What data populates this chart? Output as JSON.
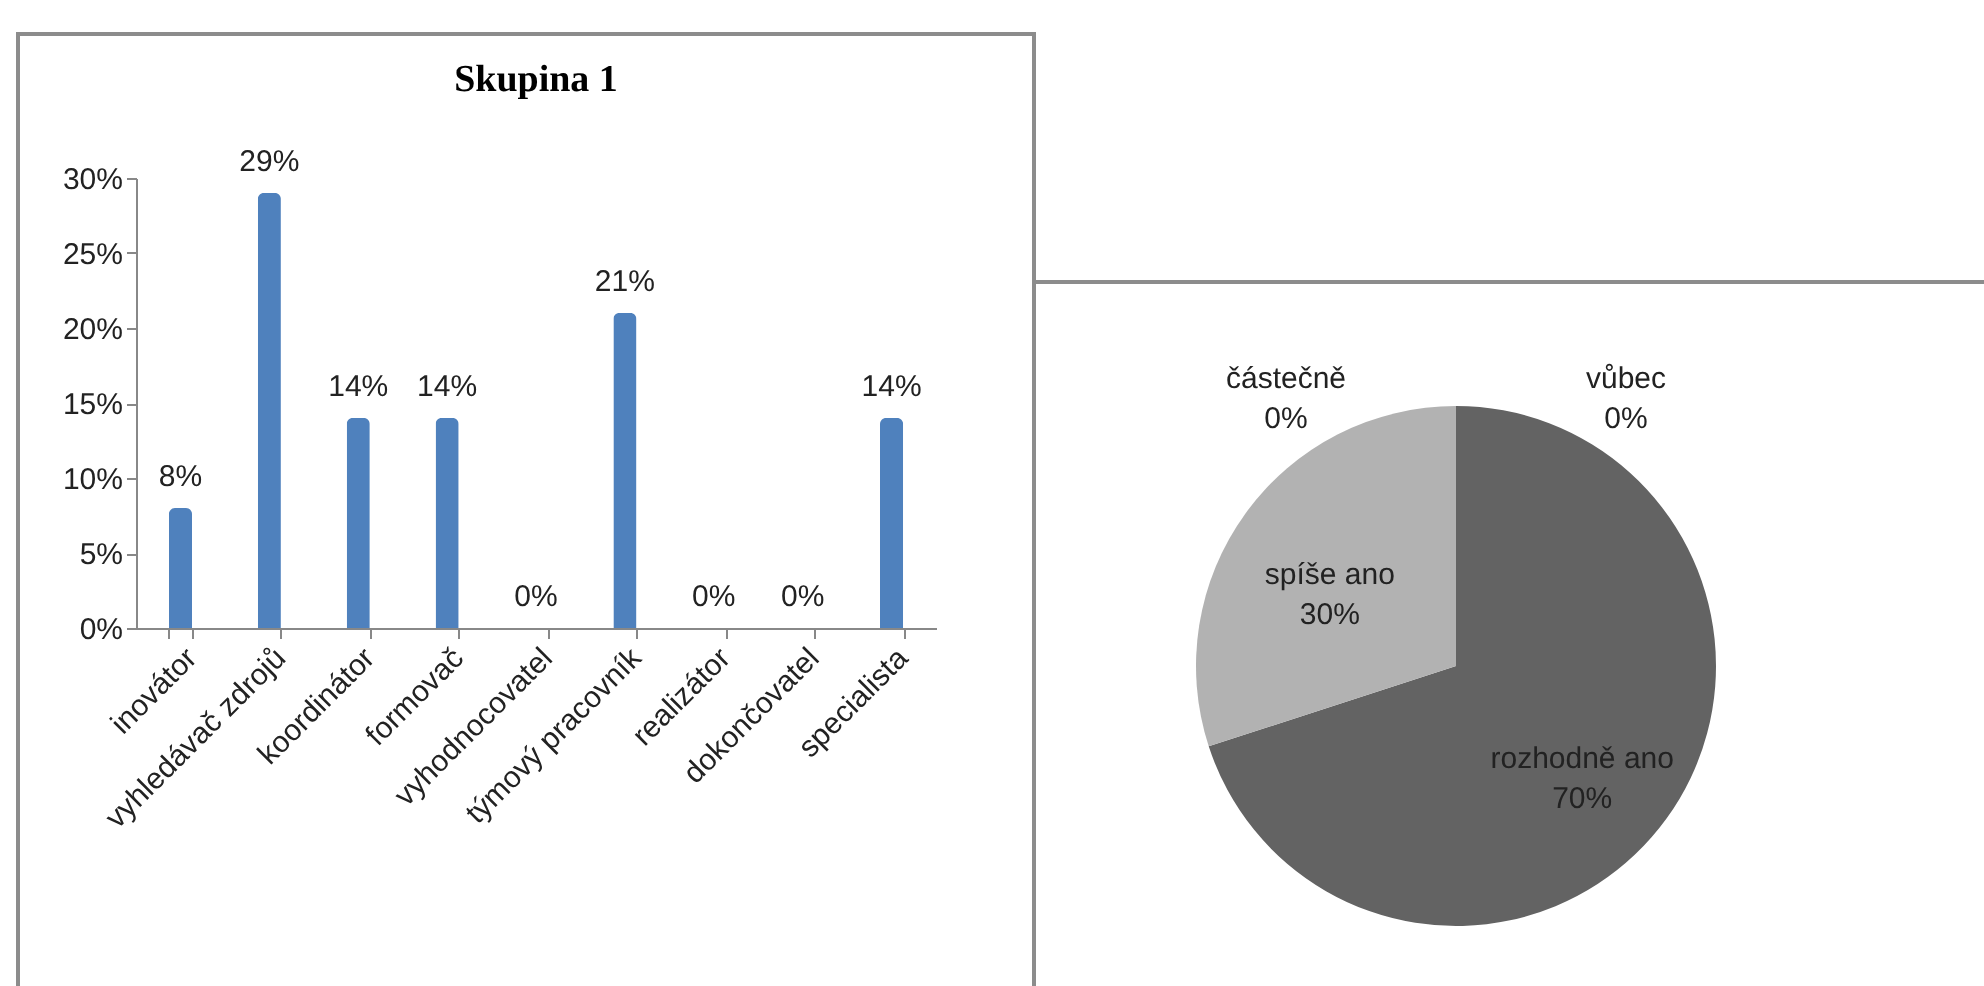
{
  "chart_data": [
    {
      "type": "bar",
      "title": "Skupina 1",
      "categories": [
        "inovátor",
        "vyhledávač zdrojů",
        "koordinátor",
        "formovač",
        "vyhodnocovatel",
        "týmový pracovník",
        "realizátor",
        "dokončovatel",
        "specialista"
      ],
      "values": [
        8,
        29,
        14,
        14,
        0,
        21,
        0,
        0,
        14
      ],
      "color": "#4f81bd",
      "value_labels": [
        "8%",
        "29%",
        "14%",
        "14%",
        "0%",
        "21%",
        "0%",
        "0%",
        "14%"
      ],
      "ylim": [
        0,
        30
      ],
      "yticks": [
        {
          "value": 0,
          "label": "0%"
        },
        {
          "value": 5,
          "label": "5%"
        },
        {
          "value": 10,
          "label": "10%"
        },
        {
          "value": 15,
          "label": "15%"
        },
        {
          "value": 20,
          "label": "20%"
        },
        {
          "value": 25,
          "label": "25%"
        },
        {
          "value": 30,
          "label": "30%"
        }
      ],
      "grid": false
    },
    {
      "type": "pie",
      "categories": [
        "rozhodně ano",
        "spíše ano",
        "částečně",
        "vůbec"
      ],
      "values": [
        70,
        30,
        0,
        0
      ],
      "colors": [
        "#636363",
        "#b2b2b2",
        "#8a8a8a",
        "#4a4a4a"
      ],
      "value_labels": [
        "70%",
        "30%",
        "0%",
        "0%"
      ]
    }
  ]
}
